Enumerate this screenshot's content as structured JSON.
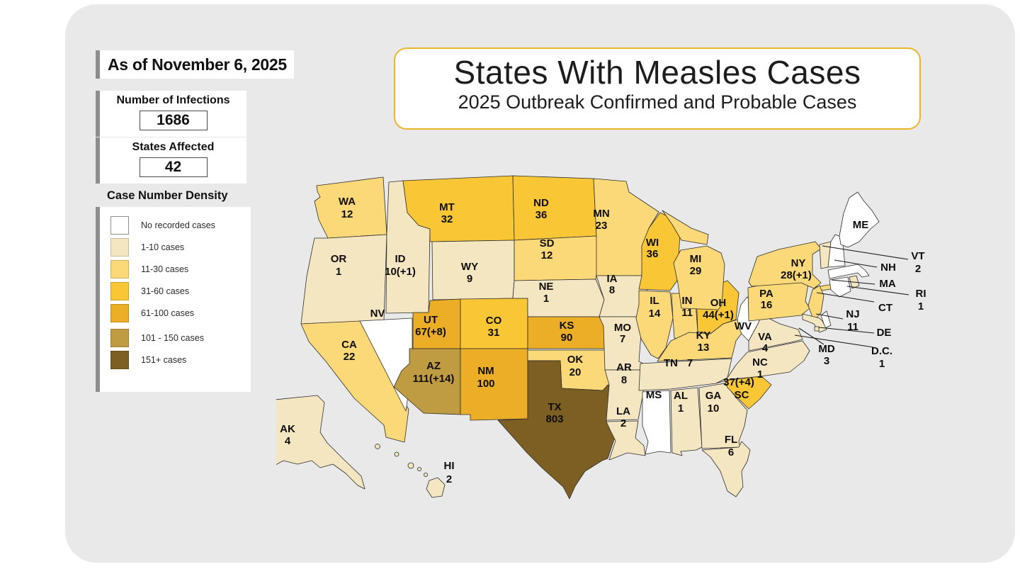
{
  "header": {
    "as_of": "As of November 6, 2025",
    "infections": {
      "label": "Number of Infections",
      "value": "1686"
    },
    "states_affected": {
      "label": "States Affected",
      "value": "42"
    }
  },
  "title_box": {
    "title": "States With Measles Cases",
    "subtitle": "2025 Outbreak Confirmed and Probable Cases"
  },
  "legend": {
    "title": "Case Number Density",
    "items": [
      {
        "key": "none",
        "label": "No recorded cases",
        "color": "#ffffff"
      },
      {
        "key": "1-10",
        "label": "1-10 cases",
        "color": "#f4e6c0"
      },
      {
        "key": "11-30",
        "label": "11-30 cases",
        "color": "#fbd878"
      },
      {
        "key": "31-60",
        "label": "31-60 cases",
        "color": "#f9c735"
      },
      {
        "key": "61-100",
        "label": "61-100 cases",
        "color": "#ecae27"
      },
      {
        "key": "101-150",
        "label": "101 - 150 cases",
        "color": "#bf9c41"
      },
      {
        "key": "151+",
        "label": "151+ cases",
        "color": "#7d5f23"
      }
    ]
  },
  "colors": {
    "panel_bg": "#e9e9e9",
    "title_border": "#eab528",
    "accent_bar": "#8d8d8d",
    "state_border": "#2d2d2d"
  },
  "chart_data": {
    "type": "heatmap",
    "subtype": "us-choropleth",
    "title": "States With Measles Cases",
    "subtitle": "2025 Outbreak Confirmed and Probable Cases",
    "as_of": "As of November 6, 2025",
    "total_infections": 1686,
    "states_affected": 42,
    "legend_title": "Case Number Density",
    "states": [
      {
        "id": "WA",
        "abbr": "WA",
        "cases": "12",
        "category": "11-30"
      },
      {
        "id": "OR",
        "abbr": "OR",
        "cases": "1",
        "category": "1-10"
      },
      {
        "id": "CA",
        "abbr": "CA",
        "cases": "22",
        "category": "11-30"
      },
      {
        "id": "NV",
        "abbr": "NV",
        "cases": null,
        "category": "none"
      },
      {
        "id": "ID",
        "abbr": "ID",
        "cases": "10(+1)",
        "category": "1-10"
      },
      {
        "id": "MT",
        "abbr": "MT",
        "cases": "32",
        "category": "31-60"
      },
      {
        "id": "WY",
        "abbr": "WY",
        "cases": "9",
        "category": "1-10"
      },
      {
        "id": "UT",
        "abbr": "UT",
        "cases": "67(+8)",
        "category": "61-100"
      },
      {
        "id": "CO",
        "abbr": "CO",
        "cases": "31",
        "category": "31-60"
      },
      {
        "id": "AZ",
        "abbr": "AZ",
        "cases": "111(+14)",
        "category": "101-150"
      },
      {
        "id": "NM",
        "abbr": "NM",
        "cases": "100",
        "category": "61-100"
      },
      {
        "id": "TX",
        "abbr": "TX",
        "cases": "803",
        "category": "151+"
      },
      {
        "id": "ND",
        "abbr": "ND",
        "cases": "36",
        "category": "31-60"
      },
      {
        "id": "SD",
        "abbr": "SD",
        "cases": "12",
        "category": "11-30"
      },
      {
        "id": "NE",
        "abbr": "NE",
        "cases": "1",
        "category": "1-10"
      },
      {
        "id": "KS",
        "abbr": "KS",
        "cases": "90",
        "category": "61-100"
      },
      {
        "id": "OK",
        "abbr": "OK",
        "cases": "20",
        "category": "11-30"
      },
      {
        "id": "MN",
        "abbr": "MN",
        "cases": "23",
        "category": "11-30"
      },
      {
        "id": "IA",
        "abbr": "IA",
        "cases": "8",
        "category": "1-10"
      },
      {
        "id": "MO",
        "abbr": "MO",
        "cases": "7",
        "category": "1-10"
      },
      {
        "id": "AR",
        "abbr": "AR",
        "cases": "8",
        "category": "1-10"
      },
      {
        "id": "LA",
        "abbr": "LA",
        "cases": "2",
        "category": "1-10"
      },
      {
        "id": "WI",
        "abbr": "WI",
        "cases": "36",
        "category": "31-60"
      },
      {
        "id": "IL",
        "abbr": "IL",
        "cases": "14",
        "category": "11-30"
      },
      {
        "id": "MS",
        "abbr": "MS",
        "cases": null,
        "category": "none"
      },
      {
        "id": "MI",
        "abbr": "MI",
        "cases": "29",
        "category": "11-30"
      },
      {
        "id": "IN",
        "abbr": "IN",
        "cases": "11",
        "category": "11-30"
      },
      {
        "id": "OH",
        "abbr": "OH",
        "cases": "44(+1)",
        "category": "31-60"
      },
      {
        "id": "KY",
        "abbr": "KY",
        "cases": "13",
        "category": "11-30"
      },
      {
        "id": "TN",
        "abbr": "TN",
        "cases": "7",
        "category": "1-10"
      },
      {
        "id": "AL",
        "abbr": "AL",
        "cases": "1",
        "category": "1-10"
      },
      {
        "id": "GA",
        "abbr": "GA",
        "cases": "10",
        "category": "1-10"
      },
      {
        "id": "FL",
        "abbr": "FL",
        "cases": "6",
        "category": "1-10"
      },
      {
        "id": "WV",
        "abbr": "WV",
        "cases": null,
        "category": "none"
      },
      {
        "id": "VA",
        "abbr": "VA",
        "cases": "4",
        "category": "1-10"
      },
      {
        "id": "NC",
        "abbr": "NC",
        "cases": "1",
        "category": "1-10"
      },
      {
        "id": "SC",
        "abbr": "SC",
        "cases": "37(+4)",
        "category": "31-60"
      },
      {
        "id": "PA",
        "abbr": "PA",
        "cases": "16",
        "category": "11-30"
      },
      {
        "id": "NY",
        "abbr": "NY",
        "cases": "28(+1)",
        "category": "11-30"
      },
      {
        "id": "NJ",
        "abbr": "NJ",
        "cases": "11",
        "category": "11-30"
      },
      {
        "id": "DE",
        "abbr": "DE",
        "cases": null,
        "category": "none"
      },
      {
        "id": "MD",
        "abbr": "MD",
        "cases": "3",
        "category": "1-10"
      },
      {
        "id": "DC",
        "abbr": "D.C.",
        "cases": "1",
        "category": "1-10"
      },
      {
        "id": "VT",
        "abbr": "VT",
        "cases": "2",
        "category": "1-10"
      },
      {
        "id": "NH",
        "abbr": "NH",
        "cases": null,
        "category": "none"
      },
      {
        "id": "MA",
        "abbr": "MA",
        "cases": null,
        "category": "none"
      },
      {
        "id": "CT",
        "abbr": "CT",
        "cases": null,
        "category": "none"
      },
      {
        "id": "RI",
        "abbr": "RI",
        "cases": "1",
        "category": "1-10"
      },
      {
        "id": "ME",
        "abbr": "ME",
        "cases": null,
        "category": "none"
      },
      {
        "id": "AK",
        "abbr": "AK",
        "cases": "4",
        "category": "1-10"
      },
      {
        "id": "HI",
        "abbr": "HI",
        "cases": "2",
        "category": "1-10"
      }
    ]
  }
}
